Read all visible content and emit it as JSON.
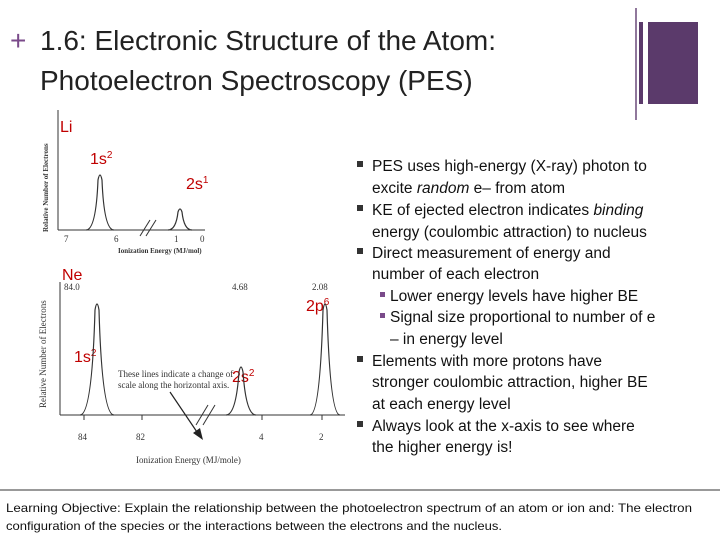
{
  "header": {
    "bullet": "+",
    "title_lines": [
      "1.6: Electronic Structure of the Atom:",
      "Photoelectron Spectroscopy (PES)"
    ]
  },
  "spectra": [
    {
      "element": "Li",
      "y_axis_label": "Relative Number of Electrons",
      "x_axis_label": "Ionization Energy (MJ/mol)",
      "x_ticks": [
        "7",
        "6",
        "1",
        "0"
      ],
      "peaks": [
        {
          "label": "1s",
          "superscript": "2"
        },
        {
          "label": "2s",
          "superscript": "1"
        }
      ]
    },
    {
      "element": "Ne",
      "y_axis_label": "Relative Number of Electrons",
      "x_axis_label": "Ionization Energy (MJ/mole)",
      "x_ticks": [
        "84",
        "82",
        "4",
        "2"
      ],
      "energies": [
        "84.0",
        "4.68",
        "2.08"
      ],
      "peaks": [
        {
          "label": "1s",
          "superscript": "2"
        },
        {
          "label": "2s",
          "superscript": "2"
        },
        {
          "label": "2p",
          "superscript": "6"
        }
      ],
      "note": [
        "These lines indicate a change of",
        "scale along the horizontal axis."
      ]
    }
  ],
  "bullets": [
    {
      "lines": [
        [
          "PES uses high-energy (X-ray) photon to"
        ],
        [
          "excite ",
          "random",
          " e– from atom"
        ]
      ]
    },
    {
      "lines": [
        [
          "KE of ejected electron indicates ",
          "binding"
        ],
        [
          "energy (coulombic attraction) to nucleus"
        ]
      ]
    },
    {
      "lines": [
        [
          "Direct measurement of energy and"
        ],
        [
          "number of each electron"
        ]
      ],
      "sub": [
        {
          "lines": [
            "Lower energy levels have higher BE"
          ]
        },
        {
          "lines": [
            "Signal size proportional to number of e",
            "– in energy level"
          ]
        }
      ]
    },
    {
      "lines": [
        [
          "Elements with more protons have"
        ],
        [
          "stronger coulombic attraction, higher BE"
        ],
        [
          "at each energy level"
        ]
      ]
    },
    {
      "lines": [
        [
          "Always look at the x-axis to see where"
        ],
        [
          "the higher energy is!"
        ]
      ]
    }
  ],
  "footer": {
    "lines": [
      "Learning Objective: Explain the relationship between the photoelectron spectrum of an atom or ion and: The electron",
      "configuration of the species or the interactions between the electrons and the nucleus."
    ]
  }
}
